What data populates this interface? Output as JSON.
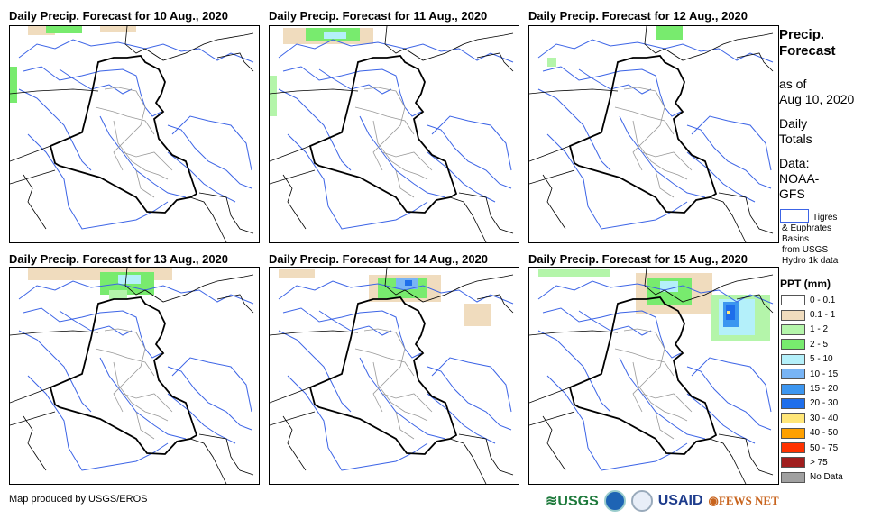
{
  "panels": [
    {
      "title": "Daily Precip. Forecast for 10 Aug., 2020"
    },
    {
      "title": "Daily Precip. Forecast for 11 Aug., 2020"
    },
    {
      "title": "Daily Precip. Forecast for 12 Aug., 2020"
    },
    {
      "title": "Daily Precip. Forecast for 13 Aug., 2020"
    },
    {
      "title": "Daily Precip. Forecast for 14 Aug., 2020"
    },
    {
      "title": "Daily Precip. Forecast for 15 Aug., 2020"
    }
  ],
  "sidebar": {
    "title_line1": "Precip.",
    "title_line2": "Forecast",
    "asof_line1": "as of",
    "asof_line2": "Aug 10, 2020",
    "daily_line1": "Daily",
    "daily_line2": "Totals",
    "data_line1": "Data:",
    "data_line2": "NOAA-",
    "data_line3": "GFS",
    "basin_line1": "Tigres",
    "basin_line2": "& Euphrates",
    "basin_line3": "Basins",
    "basin_line4": "from USGS",
    "basin_line5": "Hydro 1k data"
  },
  "legend": {
    "title": "PPT (mm)",
    "items": [
      {
        "label": "0 - 0.1",
        "color": "#ffffff"
      },
      {
        "label": "0.1 - 1",
        "color": "#f0dcbe"
      },
      {
        "label": "1 - 2",
        "color": "#b4f5aa"
      },
      {
        "label": "2 - 5",
        "color": "#78eb6e"
      },
      {
        "label": "5 - 10",
        "color": "#b4f0fa"
      },
      {
        "label": "10 - 15",
        "color": "#78b4f5"
      },
      {
        "label": "15 - 20",
        "color": "#3c96f0"
      },
      {
        "label": "20 - 30",
        "color": "#1e6eeb"
      },
      {
        "label": "30 - 40",
        "color": "#ffe678"
      },
      {
        "label": "40 - 50",
        "color": "#ffa000"
      },
      {
        "label": "50 - 75",
        "color": "#ff3200"
      },
      {
        "label": "> 75",
        "color": "#a01e1e"
      },
      {
        "label": "No Data",
        "color": "#a0a0a0"
      }
    ]
  },
  "footer": {
    "credit": "Map produced by USGS/EROS"
  },
  "logos": {
    "usgs": "USGS",
    "usaid": "USAID",
    "fews": "FEWS NET"
  }
}
